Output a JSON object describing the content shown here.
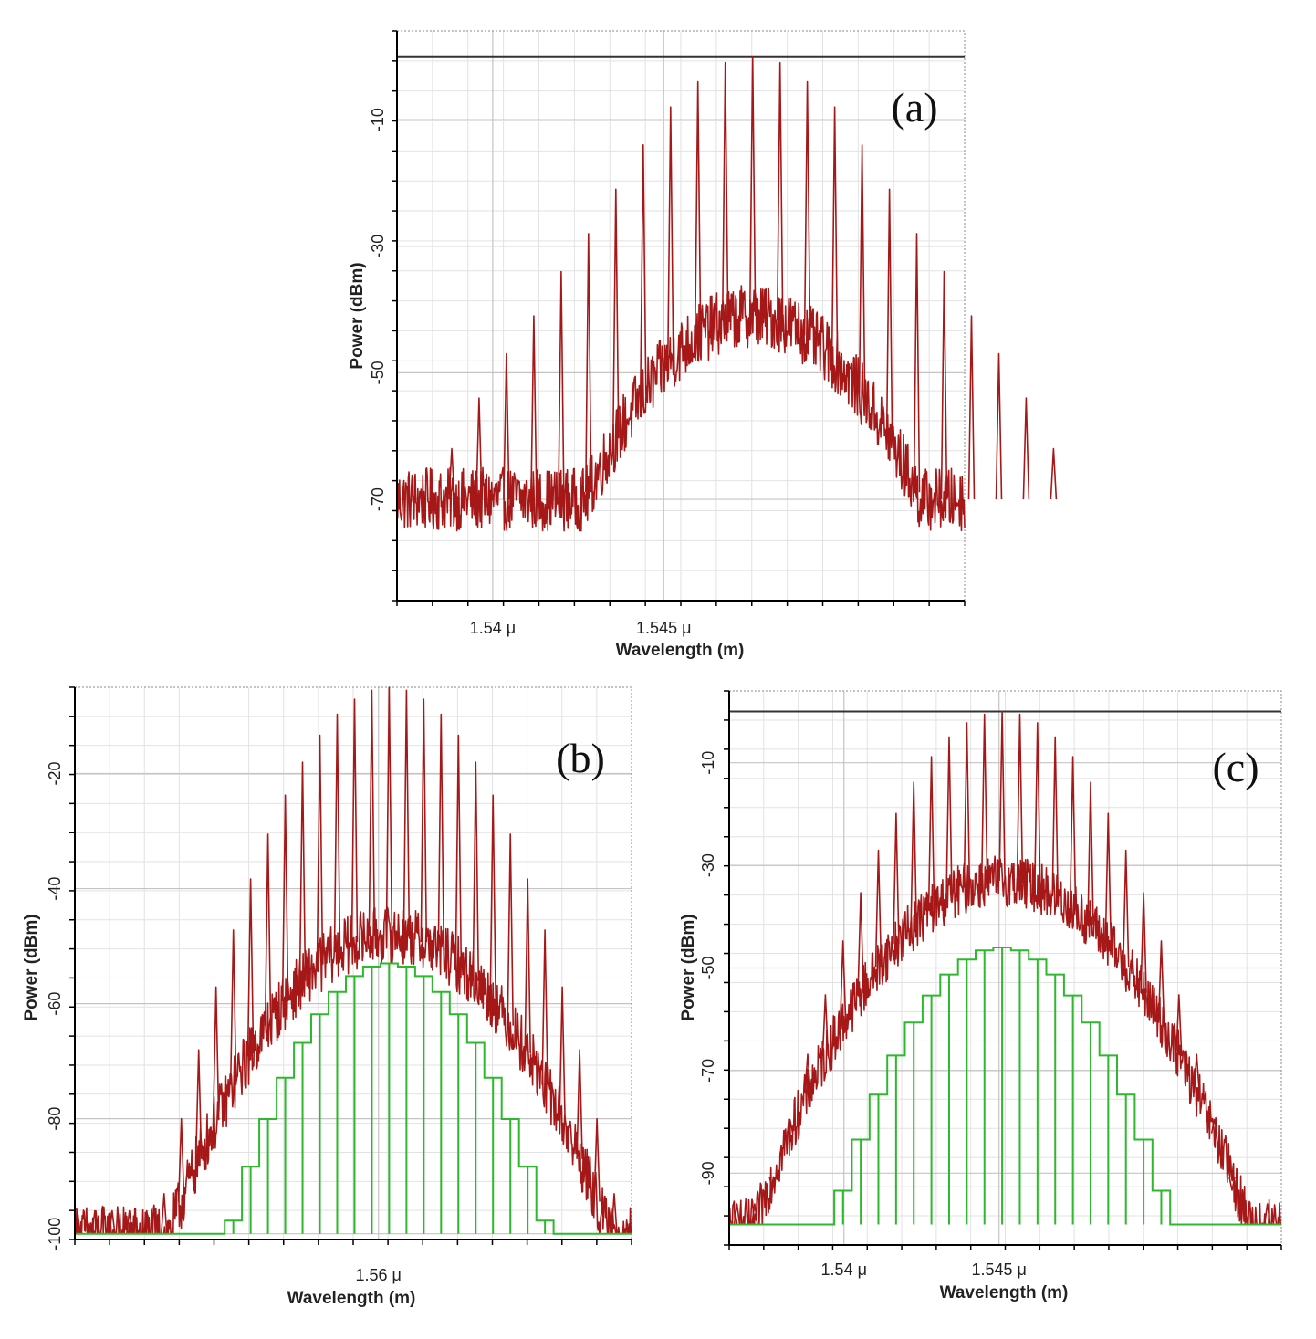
{
  "chart_data": [
    {
      "type": "line",
      "panel_label": "(a)",
      "xlabel": "Wavelength (m)",
      "ylabel": "Power (dBm)",
      "x_unit": "μm",
      "xlim": [
        1.5372,
        1.5538
      ],
      "ylim": [
        -86,
        4
      ],
      "x_ticks": [
        1.54,
        1.545
      ],
      "x_tick_labels": [
        "1.54 μ",
        "1.545 μ"
      ],
      "y_ticks": [
        -10,
        -30,
        -50,
        -70
      ],
      "y_tick_labels": [
        "-10",
        "-30",
        "-50",
        "-70"
      ],
      "reference_level_dbm": 0,
      "grid": true,
      "legend": "none",
      "series": [
        {
          "color": "#a61818",
          "line_spacing_um": 0.0008,
          "peaks": [
            {
              "x": 1.5388,
              "y": -62
            },
            {
              "x": 1.5396,
              "y": -54
            },
            {
              "x": 1.5404,
              "y": -47
            },
            {
              "x": 1.5412,
              "y": -41
            },
            {
              "x": 1.542,
              "y": -34
            },
            {
              "x": 1.5428,
              "y": -28
            },
            {
              "x": 1.5436,
              "y": -21
            },
            {
              "x": 1.5444,
              "y": -14
            },
            {
              "x": 1.5452,
              "y": -8
            },
            {
              "x": 1.546,
              "y": -4
            },
            {
              "x": 1.5468,
              "y": -1
            },
            {
              "x": 1.5476,
              "y": 0
            },
            {
              "x": 1.5484,
              "y": -1
            },
            {
              "x": 1.5492,
              "y": -4
            },
            {
              "x": 1.55,
              "y": -8
            },
            {
              "x": 1.5508,
              "y": -14
            },
            {
              "x": 1.5516,
              "y": -21
            },
            {
              "x": 1.5524,
              "y": -28
            },
            {
              "x": 1.5532,
              "y": -34
            },
            {
              "x": 1.554,
              "y": -41
            },
            {
              "x": 1.5548,
              "y": -47
            },
            {
              "x": 1.5556,
              "y": -54
            },
            {
              "x": 1.5564,
              "y": -62
            }
          ],
          "pedestal_peak_dbm": -41,
          "noise_floor_dbm": -70
        }
      ]
    },
    {
      "type": "line",
      "panel_label": "(b)",
      "xlabel": "Wavelength (m)",
      "ylabel": "Power (dBm)",
      "x_unit": "μm",
      "xlim": [
        1.5486,
        1.5695
      ],
      "ylim": [
        -101,
        -5
      ],
      "x_ticks": [
        1.56
      ],
      "x_tick_labels": [
        "1.56 μ"
      ],
      "y_ticks": [
        -20,
        -40,
        -60,
        -80,
        -100
      ],
      "y_tick_labels": [
        "-20",
        "-40",
        "-60",
        "-80",
        "-100"
      ],
      "grid": true,
      "legend": "none",
      "series": [
        {
          "color": "#a61818",
          "line_spacing_um": 0.00065,
          "center_um": 1.5604,
          "peak_max_dbm": -5,
          "pedestal_peak_dbm": -48,
          "noise_floor_dbm": -100
        },
        {
          "color": "#2db82d",
          "line_spacing_um": 0.00065,
          "center_um": 1.5604,
          "envelope_peak_dbm": -53,
          "floor_dbm": -100
        }
      ]
    },
    {
      "type": "line",
      "panel_label": "(c)",
      "xlabel": "Wavelength (m)",
      "ylabel": "Power (dBm)",
      "x_unit": "μm",
      "xlim": [
        1.5363,
        1.5541
      ],
      "ylim": [
        -104,
        4
      ],
      "x_ticks": [
        1.54,
        1.545
      ],
      "x_tick_labels": [
        "1.54 μ",
        "1.545 μ"
      ],
      "y_ticks": [
        -10,
        -30,
        -50,
        -70,
        -90
      ],
      "y_tick_labels": [
        "-10",
        "-30",
        "-50",
        "-70",
        "-90"
      ],
      "reference_level_dbm": 0,
      "grid": true,
      "legend": "none",
      "series": [
        {
          "color": "#a61818",
          "line_spacing_um": 0.00057,
          "center_um": 1.5451,
          "peak_max_dbm": 0,
          "pedestal_peak_dbm": -33,
          "noise_floor_dbm": -100
        },
        {
          "color": "#2db82d",
          "line_spacing_um": 0.00057,
          "center_um": 1.5451,
          "envelope_peak_dbm": -46,
          "floor_dbm": -100
        }
      ]
    }
  ]
}
